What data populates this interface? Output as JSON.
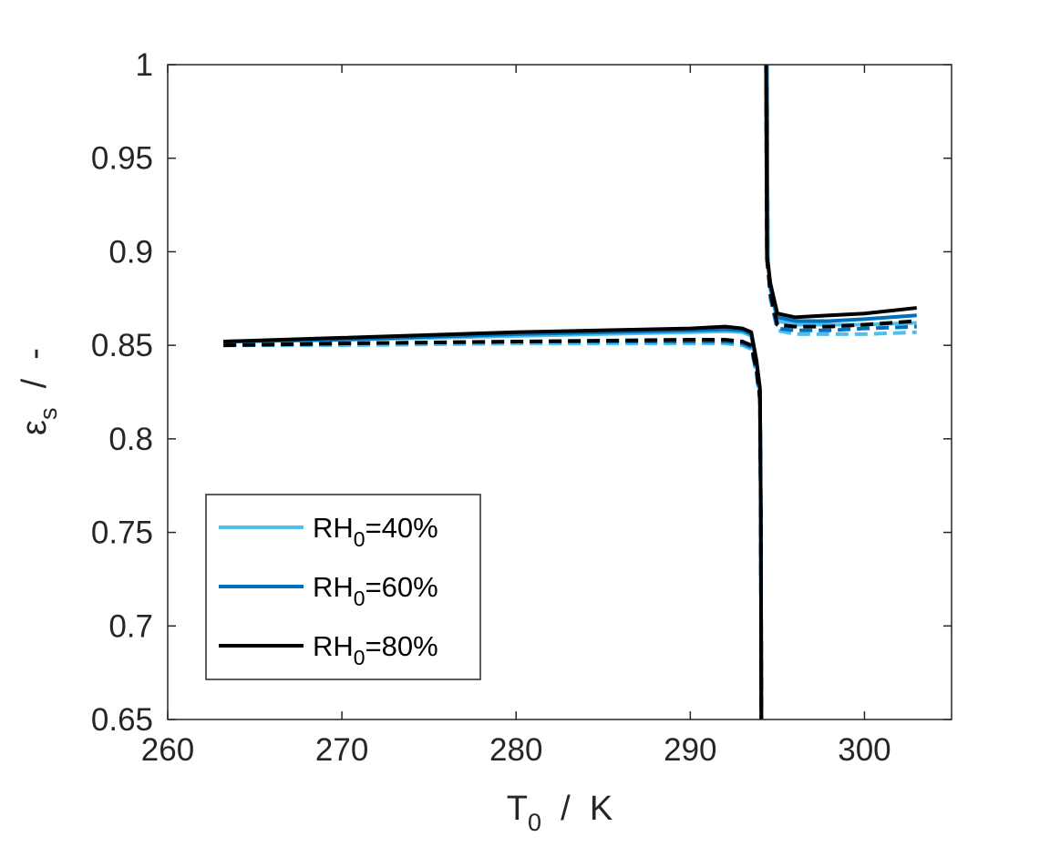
{
  "chart_data": {
    "type": "line",
    "xlabel": {
      "main": "T",
      "sub": "0",
      "rest": "  /  K"
    },
    "ylabel": {
      "main": "ε",
      "sub": "s",
      "rest": "  /  -"
    },
    "xlim": [
      260,
      305
    ],
    "ylim": [
      0.65,
      1.0
    ],
    "x_ticks": [
      260,
      270,
      280,
      290,
      300
    ],
    "y_ticks": [
      0.65,
      0.7,
      0.75,
      0.8,
      0.85,
      0.9,
      0.95,
      1.0
    ],
    "x_tick_labels": [
      "260",
      "270",
      "280",
      "290",
      "300"
    ],
    "y_tick_labels": [
      "0.65",
      "0.7",
      "0.75",
      "0.8",
      "0.85",
      "0.9",
      "0.95",
      "1"
    ],
    "grid": false,
    "legend_position": "bottom-left",
    "legend": [
      {
        "main": "RH",
        "sub": "0",
        "rest": "=40%",
        "color": "#4DBEEE"
      },
      {
        "main": "RH",
        "sub": "0",
        "rest": "=60%",
        "color": "#0072BD"
      },
      {
        "main": "RH",
        "sub": "0",
        "rest": "=80%",
        "color": "#000000"
      }
    ],
    "series": [
      {
        "color": "#4DBEEE",
        "style": "solid",
        "segments": [
          {
            "x": [
              263.2,
              270,
              280,
              290,
              292,
              293,
              293.5,
              293.8,
              294.0,
              294.05,
              294.08
            ],
            "y": [
              0.852,
              0.853,
              0.855,
              0.857,
              0.8575,
              0.857,
              0.855,
              0.84,
              0.825,
              0.76,
              0.65
            ]
          },
          {
            "x": [
              294.4,
              294.45,
              294.6,
              295.0,
              296.0,
              298.0,
              300.0,
              303.0
            ],
            "y": [
              1.0,
              0.895,
              0.88,
              0.863,
              0.861,
              0.861,
              0.861,
              0.862
            ]
          }
        ]
      },
      {
        "color": "#0072BD",
        "style": "solid",
        "segments": [
          {
            "x": [
              263.2,
              270,
              280,
              290,
              292,
              293,
              293.5,
              293.8,
              294.0,
              294.05,
              294.08
            ],
            "y": [
              0.852,
              0.853,
              0.856,
              0.858,
              0.8585,
              0.858,
              0.856,
              0.841,
              0.826,
              0.76,
              0.65
            ]
          },
          {
            "x": [
              294.4,
              294.45,
              294.6,
              295.0,
              296.0,
              298.0,
              300.0,
              303.0
            ],
            "y": [
              1.0,
              0.896,
              0.881,
              0.865,
              0.863,
              0.863,
              0.864,
              0.866
            ]
          }
        ]
      },
      {
        "color": "#000000",
        "style": "solid",
        "segments": [
          {
            "x": [
              263.2,
              270,
              280,
              290,
              292,
              293,
              293.5,
              293.8,
              294.0,
              294.05,
              294.08
            ],
            "y": [
              0.852,
              0.854,
              0.857,
              0.859,
              0.86,
              0.859,
              0.857,
              0.842,
              0.827,
              0.76,
              0.65
            ]
          },
          {
            "x": [
              294.35,
              294.4,
              294.6,
              295.0,
              296.0,
              298.0,
              300.0,
              303.0
            ],
            "y": [
              1.0,
              0.898,
              0.883,
              0.867,
              0.865,
              0.866,
              0.867,
              0.87
            ]
          }
        ]
      },
      {
        "color": "#4DBEEE",
        "style": "dashed",
        "segments": [
          {
            "x": [
              263.2,
              270,
              280,
              290,
              292,
              293,
              293.5,
              293.8,
              294.0,
              294.05,
              294.08
            ],
            "y": [
              0.85,
              0.85,
              0.851,
              0.851,
              0.851,
              0.85,
              0.848,
              0.835,
              0.82,
              0.76,
              0.65
            ]
          },
          {
            "x": [
              294.4,
              294.45,
              294.6,
              295.0,
              296.0,
              298.0,
              300.0,
              303.0
            ],
            "y": [
              1.0,
              0.894,
              0.875,
              0.858,
              0.856,
              0.856,
              0.856,
              0.857
            ]
          }
        ]
      },
      {
        "color": "#0072BD",
        "style": "dashed",
        "segments": [
          {
            "x": [
              263.2,
              270,
              280,
              290,
              292,
              293,
              293.5,
              293.8,
              294.0,
              294.05,
              294.08
            ],
            "y": [
              0.85,
              0.851,
              0.852,
              0.852,
              0.852,
              0.851,
              0.849,
              0.836,
              0.821,
              0.76,
              0.65
            ]
          },
          {
            "x": [
              294.4,
              294.45,
              294.6,
              295.0,
              296.0,
              298.0,
              300.0,
              303.0
            ],
            "y": [
              1.0,
              0.895,
              0.876,
              0.859,
              0.858,
              0.858,
              0.859,
              0.86
            ]
          }
        ]
      },
      {
        "color": "#000000",
        "style": "dashed",
        "segments": [
          {
            "x": [
              263.2,
              270,
              280,
              290,
              292,
              293,
              293.5,
              293.8,
              294.0,
              294.05,
              294.08
            ],
            "y": [
              0.85,
              0.851,
              0.852,
              0.853,
              0.853,
              0.852,
              0.85,
              0.837,
              0.822,
              0.76,
              0.65
            ]
          },
          {
            "x": [
              294.35,
              294.4,
              294.6,
              295.0,
              296.0,
              298.0,
              300.0,
              303.0
            ],
            "y": [
              1.0,
              0.896,
              0.878,
              0.861,
              0.86,
              0.86,
              0.861,
              0.863
            ]
          }
        ]
      }
    ]
  }
}
